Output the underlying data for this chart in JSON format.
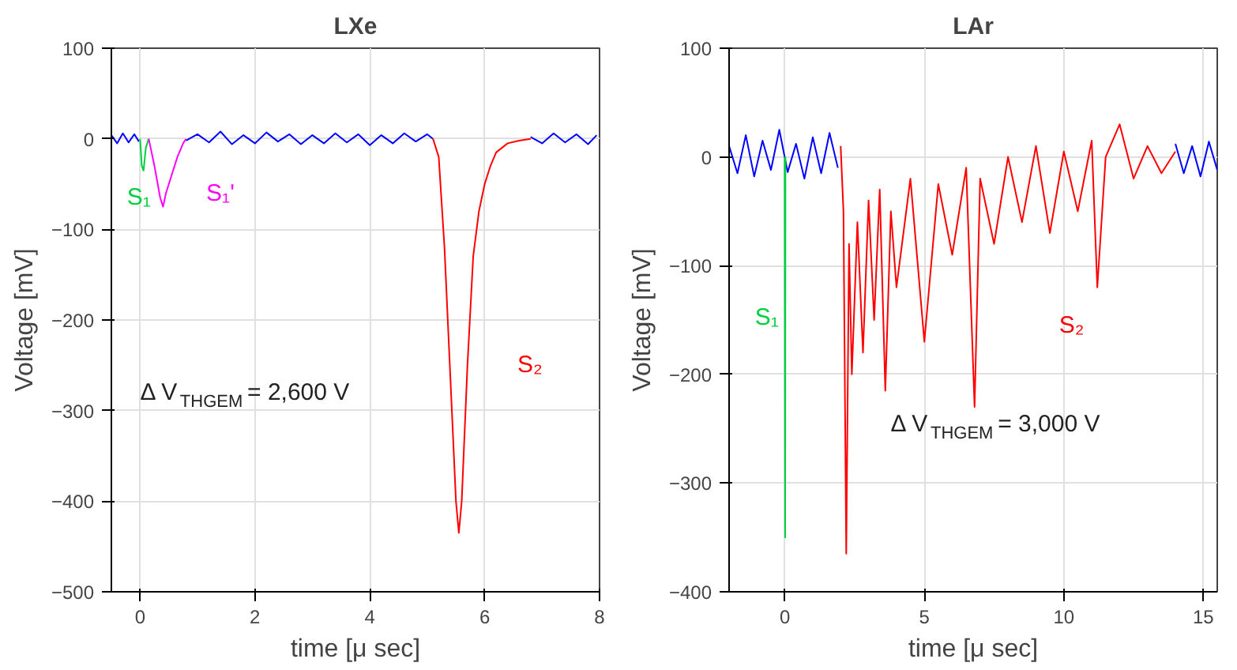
{
  "chart_data": [
    {
      "type": "line",
      "title": "LXe",
      "xlabel": "time [μ sec]",
      "ylabel": "Voltage [mV]",
      "xlim": [
        -0.5,
        8
      ],
      "xticks": [
        0,
        2,
        4,
        6,
        8
      ],
      "ylim": [
        -500,
        100
      ],
      "yticks": [
        -500,
        -400,
        -300,
        -200,
        -100,
        0,
        100
      ],
      "grid": true,
      "series": [
        {
          "color": "#0000ff",
          "x": [
            -0.5,
            -0.4,
            -0.3,
            -0.2,
            -0.1,
            -0.02,
            0.4,
            0.8,
            1.0,
            1.2,
            1.4,
            1.6,
            1.8,
            2.0,
            2.2,
            2.4,
            2.6,
            2.8,
            3.0,
            3.2,
            3.4,
            3.6,
            3.8,
            4.0,
            4.2,
            4.4,
            4.6,
            4.8,
            5.0,
            5.1,
            6.0,
            6.8,
            7.0,
            7.2,
            7.4,
            7.6,
            7.8,
            7.95
          ],
          "values": [
            4,
            -5,
            6,
            -4,
            5,
            -3,
            null,
            -2,
            5,
            -4,
            8,
            -6,
            4,
            -5,
            7,
            -3,
            5,
            -6,
            4,
            -5,
            6,
            -4,
            5,
            -7,
            4,
            -5,
            6,
            -3,
            5,
            0,
            null,
            2,
            -5,
            6,
            -4,
            5,
            -6,
            4
          ]
        },
        {
          "color": "#00d040",
          "x": [
            0,
            0.03,
            0.06,
            0.1,
            0.15
          ],
          "values": [
            0,
            -30,
            -35,
            -10,
            0
          ]
        },
        {
          "color": "#ff00ff",
          "x": [
            0.15,
            0.25,
            0.35,
            0.4,
            0.45,
            0.55,
            0.65,
            0.75,
            0.8
          ],
          "values": [
            0,
            -30,
            -65,
            -75,
            -60,
            -40,
            -20,
            -5,
            0
          ]
        },
        {
          "color": "#ff0000",
          "x": [
            5.1,
            5.2,
            5.3,
            5.4,
            5.5,
            5.55,
            5.6,
            5.7,
            5.8,
            5.9,
            6.0,
            6.1,
            6.2,
            6.4,
            6.6,
            6.8
          ],
          "values": [
            0,
            -20,
            -120,
            -260,
            -400,
            -435,
            -400,
            -250,
            -130,
            -80,
            -50,
            -30,
            -15,
            -5,
            -2,
            0
          ]
        }
      ],
      "annotations": [
        "S₁",
        "S₁'",
        "S₂",
        "Δ V$_{THGEM}$ = 2,600 V"
      ]
    },
    {
      "type": "line",
      "title": "LAr",
      "xlabel": "time [μ sec]",
      "ylabel": "Voltage [mV]",
      "xlim": [
        -2,
        15.5
      ],
      "xticks": [
        0,
        5,
        10,
        15
      ],
      "ylim": [
        -400,
        100
      ],
      "yticks": [
        -400,
        -300,
        -200,
        -100,
        0,
        100
      ],
      "grid": true,
      "series": [
        {
          "color": "#0000ff",
          "x": [
            -2,
            -1.7,
            -1.4,
            -1.1,
            -0.8,
            -0.5,
            -0.2,
            0.1,
            0.4,
            0.7,
            1.0,
            1.3,
            1.6,
            1.9,
            8,
            14,
            14.3,
            14.6,
            14.9,
            15.2,
            15.5
          ],
          "values": [
            10,
            -15,
            20,
            -18,
            15,
            -12,
            25,
            -14,
            12,
            -20,
            18,
            -15,
            22,
            -10,
            null,
            12,
            -15,
            10,
            -18,
            14,
            -12
          ]
        },
        {
          "color": "#00d040",
          "x": [
            -0.01,
            0,
            0.01,
            0.02
          ],
          "values": [
            0,
            -150,
            -350,
            0
          ]
        },
        {
          "color": "#ff0000",
          "x": [
            2.0,
            2.1,
            2.2,
            2.3,
            2.4,
            2.6,
            2.8,
            3.0,
            3.2,
            3.4,
            3.6,
            3.8,
            4.0,
            4.5,
            5.0,
            5.5,
            6.0,
            6.5,
            6.8,
            7.0,
            7.5,
            8.0,
            8.5,
            9.0,
            9.5,
            10,
            10.5,
            11,
            11.2,
            11.5,
            12,
            12.5,
            13,
            13.5,
            14
          ],
          "values": [
            10,
            -50,
            -365,
            -80,
            -200,
            -60,
            -180,
            -40,
            -150,
            -30,
            -215,
            -50,
            -120,
            -20,
            -170,
            -25,
            -90,
            -10,
            -230,
            -20,
            -80,
            0,
            -60,
            10,
            -70,
            5,
            -50,
            15,
            -120,
            0,
            30,
            -20,
            10,
            -15,
            5
          ]
        }
      ],
      "annotations": [
        "S₁",
        "S₂",
        "Δ V$_{THGEM}$ = 3,000 V"
      ]
    }
  ]
}
